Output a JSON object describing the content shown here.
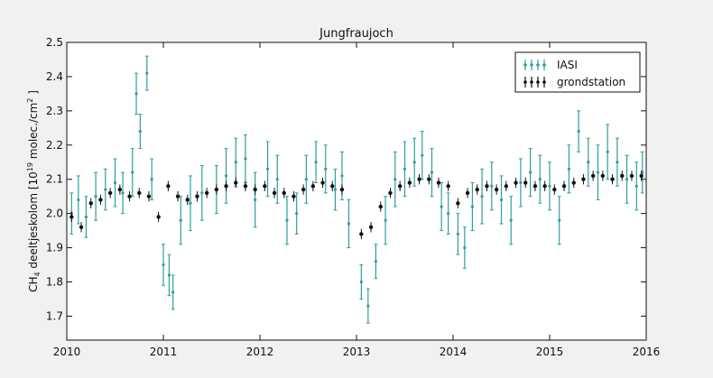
{
  "chart_data": {
    "type": "scatter",
    "title": "Jungfraujoch",
    "ylabel_parts": [
      "CH",
      "4",
      " deeltjeskolom [10",
      "19",
      " molec./cm",
      "2",
      " ]"
    ],
    "xlim": [
      2010,
      2016
    ],
    "ylim": [
      1.63,
      2.5
    ],
    "x_ticks": [
      2010,
      2011,
      2012,
      2013,
      2014,
      2015,
      2016
    ],
    "x_tick_labels": [
      "2010",
      "2011",
      "2012",
      "2013",
      "2014",
      "2015",
      "2016"
    ],
    "y_ticks": [
      1.7,
      1.8,
      1.9,
      2.0,
      2.1,
      2.2,
      2.3,
      2.4,
      2.5
    ],
    "y_tick_labels": [
      "1.7",
      "1.8",
      "1.9",
      "2.0",
      "2.1",
      "2.2",
      "2.3",
      "2.4",
      "2.5"
    ],
    "grid": false,
    "legend_position": "top-right",
    "series": [
      {
        "name": "IASI",
        "color": "#2f9e9e",
        "points": [
          [
            2010.05,
            2.0,
            0.06
          ],
          [
            2010.12,
            2.04,
            0.07
          ],
          [
            2010.2,
            1.99,
            0.06
          ],
          [
            2010.3,
            2.05,
            0.07
          ],
          [
            2010.4,
            2.07,
            0.06
          ],
          [
            2010.5,
            2.09,
            0.07
          ],
          [
            2010.58,
            2.06,
            0.06
          ],
          [
            2010.68,
            2.12,
            0.07
          ],
          [
            2010.72,
            2.35,
            0.06
          ],
          [
            2010.76,
            2.24,
            0.05
          ],
          [
            2010.83,
            2.41,
            0.05
          ],
          [
            2010.88,
            2.1,
            0.06
          ],
          [
            2011.0,
            1.85,
            0.06
          ],
          [
            2011.06,
            1.82,
            0.06
          ],
          [
            2011.1,
            1.77,
            0.05
          ],
          [
            2011.18,
            1.98,
            0.07
          ],
          [
            2011.28,
            2.03,
            0.08
          ],
          [
            2011.4,
            2.06,
            0.08
          ],
          [
            2011.55,
            2.07,
            0.07
          ],
          [
            2011.65,
            2.11,
            0.08
          ],
          [
            2011.75,
            2.15,
            0.07
          ],
          [
            2011.85,
            2.16,
            0.07
          ],
          [
            2011.95,
            2.04,
            0.08
          ],
          [
            2012.08,
            2.13,
            0.08
          ],
          [
            2012.18,
            2.1,
            0.07
          ],
          [
            2012.28,
            1.98,
            0.07
          ],
          [
            2012.38,
            2.0,
            0.06
          ],
          [
            2012.48,
            2.1,
            0.07
          ],
          [
            2012.58,
            2.15,
            0.06
          ],
          [
            2012.68,
            2.13,
            0.07
          ],
          [
            2012.78,
            2.07,
            0.06
          ],
          [
            2012.85,
            2.11,
            0.07
          ],
          [
            2012.92,
            1.97,
            0.07
          ],
          [
            2013.05,
            1.8,
            0.05
          ],
          [
            2013.12,
            1.73,
            0.05
          ],
          [
            2013.2,
            1.86,
            0.05
          ],
          [
            2013.3,
            1.98,
            0.07
          ],
          [
            2013.4,
            2.1,
            0.08
          ],
          [
            2013.5,
            2.13,
            0.08
          ],
          [
            2013.6,
            2.15,
            0.07
          ],
          [
            2013.68,
            2.17,
            0.07
          ],
          [
            2013.78,
            2.12,
            0.07
          ],
          [
            2013.88,
            2.02,
            0.07
          ],
          [
            2013.95,
            2.0,
            0.06
          ],
          [
            2014.05,
            1.94,
            0.06
          ],
          [
            2014.12,
            1.9,
            0.06
          ],
          [
            2014.2,
            2.02,
            0.07
          ],
          [
            2014.3,
            2.05,
            0.08
          ],
          [
            2014.4,
            2.08,
            0.07
          ],
          [
            2014.5,
            2.04,
            0.07
          ],
          [
            2014.6,
            1.98,
            0.07
          ],
          [
            2014.7,
            2.09,
            0.07
          ],
          [
            2014.8,
            2.12,
            0.07
          ],
          [
            2014.9,
            2.1,
            0.07
          ],
          [
            2015.0,
            2.08,
            0.07
          ],
          [
            2015.1,
            1.98,
            0.07
          ],
          [
            2015.2,
            2.13,
            0.07
          ],
          [
            2015.3,
            2.24,
            0.06
          ],
          [
            2015.4,
            2.15,
            0.07
          ],
          [
            2015.5,
            2.12,
            0.08
          ],
          [
            2015.6,
            2.18,
            0.08
          ],
          [
            2015.7,
            2.15,
            0.07
          ],
          [
            2015.8,
            2.1,
            0.07
          ],
          [
            2015.9,
            2.08,
            0.07
          ],
          [
            2015.96,
            2.12,
            0.06
          ]
        ]
      },
      {
        "name": "grondstation",
        "color": "#111111",
        "points": [
          [
            2010.05,
            1.99,
            0.015
          ],
          [
            2010.15,
            1.96,
            0.015
          ],
          [
            2010.25,
            2.03,
            0.015
          ],
          [
            2010.35,
            2.04,
            0.015
          ],
          [
            2010.45,
            2.06,
            0.015
          ],
          [
            2010.55,
            2.07,
            0.015
          ],
          [
            2010.65,
            2.05,
            0.015
          ],
          [
            2010.75,
            2.06,
            0.015
          ],
          [
            2010.85,
            2.05,
            0.015
          ],
          [
            2010.95,
            1.99,
            0.015
          ],
          [
            2011.05,
            2.08,
            0.015
          ],
          [
            2011.15,
            2.05,
            0.015
          ],
          [
            2011.25,
            2.04,
            0.015
          ],
          [
            2011.35,
            2.05,
            0.015
          ],
          [
            2011.45,
            2.06,
            0.015
          ],
          [
            2011.55,
            2.07,
            0.015
          ],
          [
            2011.65,
            2.08,
            0.015
          ],
          [
            2011.75,
            2.09,
            0.015
          ],
          [
            2011.85,
            2.08,
            0.015
          ],
          [
            2011.95,
            2.07,
            0.015
          ],
          [
            2012.05,
            2.08,
            0.015
          ],
          [
            2012.15,
            2.06,
            0.015
          ],
          [
            2012.25,
            2.06,
            0.015
          ],
          [
            2012.35,
            2.05,
            0.015
          ],
          [
            2012.45,
            2.07,
            0.015
          ],
          [
            2012.55,
            2.08,
            0.015
          ],
          [
            2012.65,
            2.09,
            0.015
          ],
          [
            2012.75,
            2.08,
            0.015
          ],
          [
            2012.85,
            2.07,
            0.015
          ],
          [
            2013.05,
            1.94,
            0.015
          ],
          [
            2013.15,
            1.96,
            0.015
          ],
          [
            2013.25,
            2.02,
            0.015
          ],
          [
            2013.35,
            2.06,
            0.015
          ],
          [
            2013.45,
            2.08,
            0.015
          ],
          [
            2013.55,
            2.09,
            0.015
          ],
          [
            2013.65,
            2.1,
            0.015
          ],
          [
            2013.75,
            2.1,
            0.015
          ],
          [
            2013.85,
            2.09,
            0.015
          ],
          [
            2013.95,
            2.08,
            0.015
          ],
          [
            2014.05,
            2.03,
            0.015
          ],
          [
            2014.15,
            2.06,
            0.015
          ],
          [
            2014.25,
            2.07,
            0.015
          ],
          [
            2014.35,
            2.08,
            0.015
          ],
          [
            2014.45,
            2.07,
            0.015
          ],
          [
            2014.55,
            2.08,
            0.015
          ],
          [
            2014.65,
            2.09,
            0.015
          ],
          [
            2014.75,
            2.09,
            0.015
          ],
          [
            2014.85,
            2.08,
            0.015
          ],
          [
            2014.95,
            2.08,
            0.015
          ],
          [
            2015.05,
            2.07,
            0.015
          ],
          [
            2015.15,
            2.08,
            0.015
          ],
          [
            2015.25,
            2.09,
            0.015
          ],
          [
            2015.35,
            2.1,
            0.015
          ],
          [
            2015.45,
            2.11,
            0.015
          ],
          [
            2015.55,
            2.11,
            0.015
          ],
          [
            2015.65,
            2.1,
            0.015
          ],
          [
            2015.75,
            2.11,
            0.015
          ],
          [
            2015.85,
            2.11,
            0.015
          ],
          [
            2015.95,
            2.11,
            0.015
          ]
        ]
      }
    ]
  }
}
